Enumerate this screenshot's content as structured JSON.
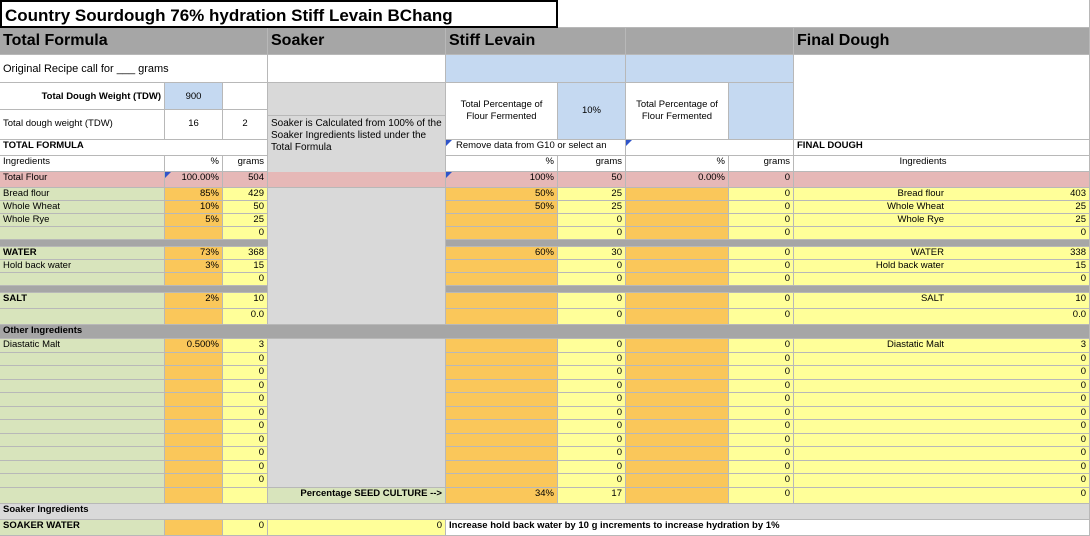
{
  "title": "Country Sourdough 76% hydration Stiff Levain BChang",
  "headers": {
    "total_formula": "Total Formula",
    "soaker": "Soaker",
    "stiff_levain": "Stiff Levain",
    "final_dough": "Final Dough"
  },
  "recipe_call": "Original Recipe call for ___ grams",
  "tdw_label": "Total Dough Weight (TDW)",
  "tdw_value": "900",
  "tdw2_label": "Total dough weight (TDW)",
  "tdw2_a": "16",
  "tdw2_b": "2",
  "soaker_note": "Soaker is Calculated from 100% of the Soaker Ingredients listed under the Total Formula",
  "levain_pct_label": "Total Percentage of Flour Fermented",
  "levain_pct_value": "10%",
  "col4_pct_label": "Total Percentage of Flour Fermented",
  "remove_note": "Remove data from G10 or select an",
  "total_formula_label": "TOTAL FORMULA",
  "final_dough_label": "FINAL DOUGH",
  "col_ingredients": "Ingredients",
  "col_pct": "%",
  "col_grams": "grams",
  "total_flour": {
    "label": "Total Flour",
    "pct": "100.00%",
    "grams": "504",
    "lev_pct": "100%",
    "lev_g": "50",
    "c4_pct": "0.00%",
    "c4_g": "0"
  },
  "rows1": [
    {
      "name": "Bread flour",
      "pct": "85%",
      "g": "429",
      "lp": "50%",
      "lg": "25",
      "c4": "0",
      "fn": "Bread flour",
      "fg": "403"
    },
    {
      "name": "Whole Wheat",
      "pct": "10%",
      "g": "50",
      "lp": "50%",
      "lg": "25",
      "c4": "0",
      "fn": "Whole Wheat",
      "fg": "25"
    },
    {
      "name": "Whole Rye",
      "pct": "5%",
      "g": "25",
      "lp": "",
      "lg": "0",
      "c4": "0",
      "fn": "Whole Rye",
      "fg": "25"
    },
    {
      "name": "",
      "pct": "",
      "g": "0",
      "lp": "",
      "lg": "0",
      "c4": "0",
      "fn": "",
      "fg": "0"
    }
  ],
  "rows2": [
    {
      "name": "WATER",
      "pct": "73%",
      "g": "368",
      "lp": "60%",
      "lg": "30",
      "c4": "0",
      "fn": "WATER",
      "fg": "338"
    },
    {
      "name": "Hold back water",
      "pct": "3%",
      "g": "15",
      "lp": "",
      "lg": "0",
      "c4": "0",
      "fn": "Hold back water",
      "fg": "15"
    },
    {
      "name": "",
      "pct": "",
      "g": "0",
      "lp": "",
      "lg": "0",
      "c4": "0",
      "fn": "",
      "fg": "0"
    }
  ],
  "rows3": [
    {
      "name": "SALT",
      "pct": "2%",
      "g": "10",
      "lp": "",
      "lg": "0",
      "c4": "0",
      "fn": "SALT",
      "fg": "10"
    },
    {
      "name": "",
      "pct": "",
      "g": "0.0",
      "lp": "",
      "lg": "0",
      "c4": "0",
      "fn": "",
      "fg": "0.0"
    }
  ],
  "other_label": "Other Ingredients",
  "rows4": [
    {
      "name": "Diastatic Malt",
      "pct": "0.500%",
      "g": "3",
      "lp": "",
      "lg": "0",
      "c4": "0",
      "fn": "Diastatic Malt",
      "fg": "3"
    },
    {
      "name": "",
      "pct": "",
      "g": "0",
      "lp": "",
      "lg": "0",
      "c4": "0",
      "fn": "",
      "fg": "0"
    },
    {
      "name": "",
      "pct": "",
      "g": "0",
      "lp": "",
      "lg": "0",
      "c4": "0",
      "fn": "",
      "fg": "0"
    },
    {
      "name": "",
      "pct": "",
      "g": "0",
      "lp": "",
      "lg": "0",
      "c4": "0",
      "fn": "",
      "fg": "0"
    },
    {
      "name": "",
      "pct": "",
      "g": "0",
      "lp": "",
      "lg": "0",
      "c4": "0",
      "fn": "",
      "fg": "0"
    },
    {
      "name": "",
      "pct": "",
      "g": "0",
      "lp": "",
      "lg": "0",
      "c4": "0",
      "fn": "",
      "fg": "0"
    },
    {
      "name": "",
      "pct": "",
      "g": "0",
      "lp": "",
      "lg": "0",
      "c4": "0",
      "fn": "",
      "fg": "0"
    },
    {
      "name": "",
      "pct": "",
      "g": "0",
      "lp": "",
      "lg": "0",
      "c4": "0",
      "fn": "",
      "fg": "0"
    },
    {
      "name": "",
      "pct": "",
      "g": "0",
      "lp": "",
      "lg": "0",
      "c4": "0",
      "fn": "",
      "fg": "0"
    },
    {
      "name": "",
      "pct": "",
      "g": "0",
      "lp": "",
      "lg": "0",
      "c4": "0",
      "fn": "",
      "fg": "0"
    },
    {
      "name": "",
      "pct": "",
      "g": "0",
      "lp": "",
      "lg": "0",
      "c4": "0",
      "fn": "",
      "fg": "0"
    }
  ],
  "seed_label": "Percentage SEED CULTURE  -->",
  "seed_pct": "34%",
  "seed_g": "17",
  "seed_c4": "0",
  "seed_fg": "0",
  "soaker_ing_label": "Soaker Ingredients",
  "soaker_water": {
    "label": "SOAKER WATER",
    "g": "0",
    "sg": "0"
  },
  "hold_back_note": "Increase hold back water by 10 g increments to increase hydration by 1%"
}
